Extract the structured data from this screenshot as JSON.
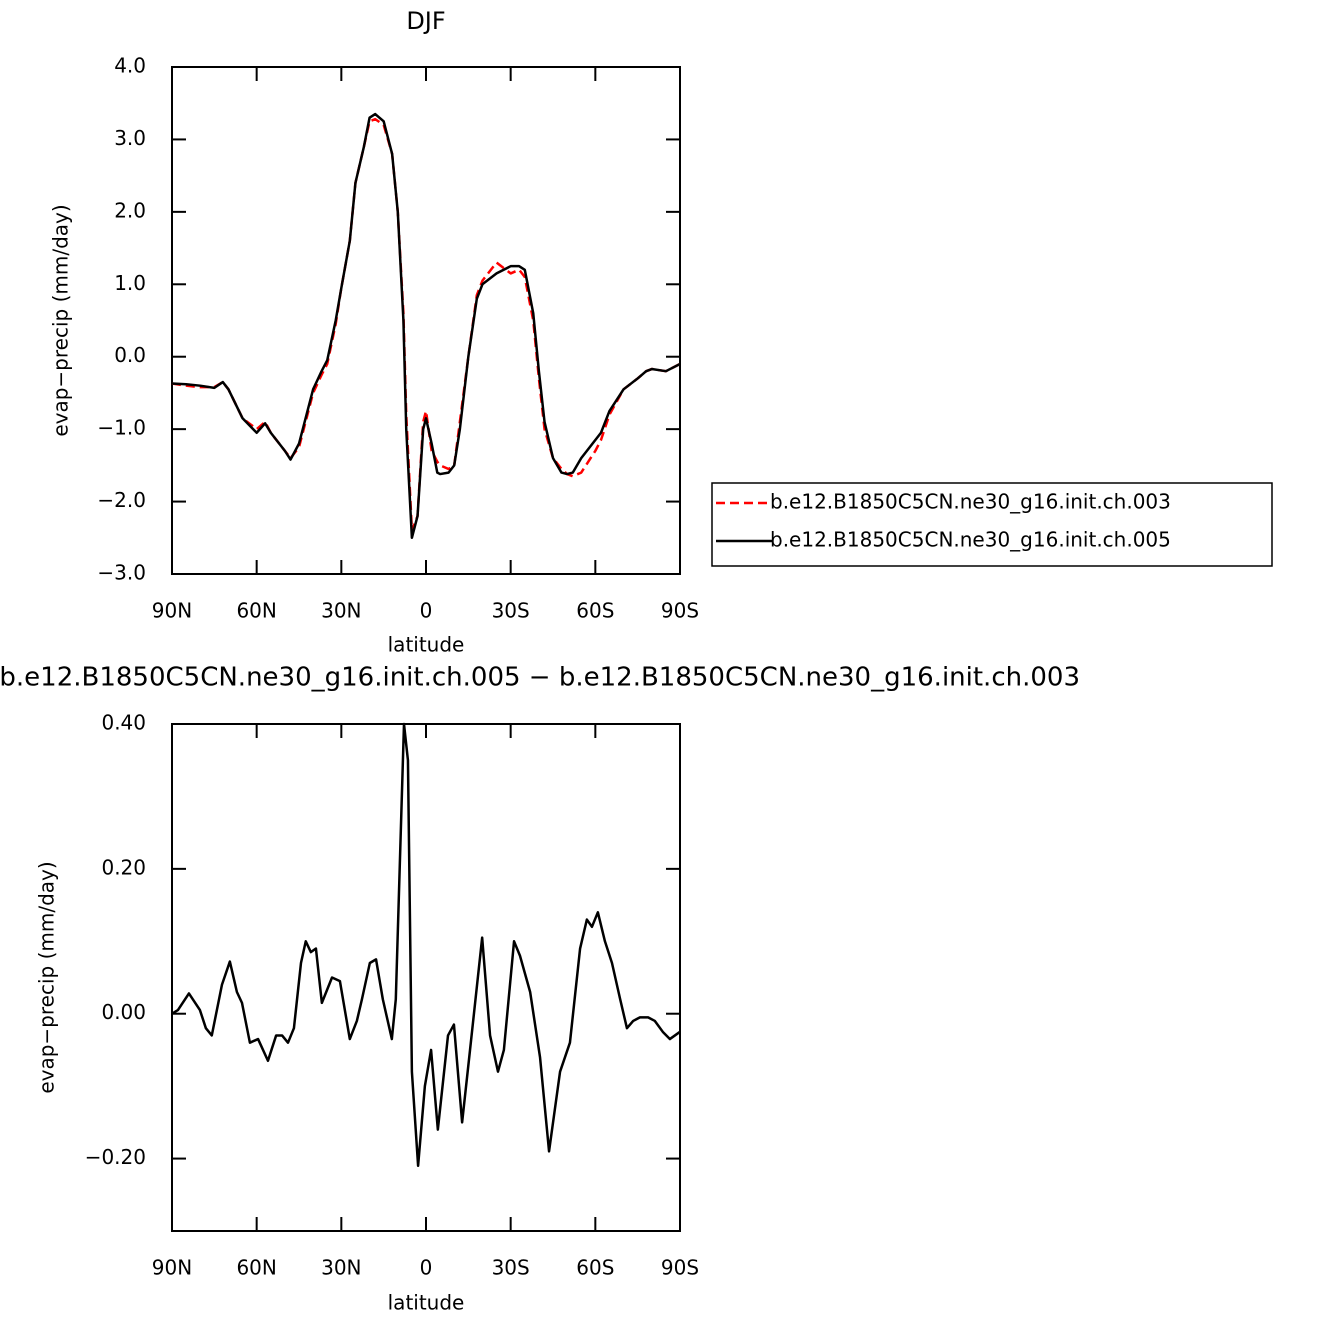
{
  "chart_data": [
    {
      "type": "line",
      "title": "DJF",
      "xlabel": "latitude",
      "ylabel": "evap−precip (mm/day)",
      "x": [
        90,
        85,
        80,
        75,
        72,
        70,
        65,
        60,
        57,
        55,
        50,
        48,
        45,
        40,
        37,
        35,
        32,
        30,
        27,
        25,
        22,
        20,
        18,
        15,
        12,
        10,
        8,
        7,
        5,
        3,
        1,
        0,
        -2,
        -4,
        -5,
        -8,
        -10,
        -12,
        -15,
        -18,
        -20,
        -25,
        -30,
        -33,
        -35,
        -38,
        -40,
        -42,
        -45,
        -48,
        -50,
        -52,
        -55,
        -60,
        -62,
        -65,
        -70,
        -75,
        -78,
        -80,
        -85,
        -90
      ],
      "series": [
        {
          "name": "b.e12.B1850C5CN.ne30_g16.init.ch.003",
          "color": "#ff0000",
          "line_style": "dashed",
          "values": [
            -0.37,
            -0.4,
            -0.42,
            -0.42,
            -0.35,
            -0.45,
            -0.85,
            -1.0,
            -0.9,
            -1.05,
            -1.3,
            -1.4,
            -1.25,
            -0.5,
            -0.25,
            -0.1,
            0.45,
            0.95,
            1.6,
            2.4,
            2.9,
            3.25,
            3.28,
            3.2,
            2.8,
            2.0,
            0.6,
            -0.8,
            -2.4,
            -2.2,
            -0.9,
            -0.75,
            -1.3,
            -1.45,
            -1.5,
            -1.55,
            -1.5,
            -0.9,
            0.0,
            0.85,
            1.05,
            1.3,
            1.15,
            1.2,
            1.1,
            0.5,
            -0.3,
            -1.0,
            -1.4,
            -1.55,
            -1.62,
            -1.65,
            -1.6,
            -1.3,
            -1.15,
            -0.8,
            -0.45,
            -0.3,
            -0.2,
            -0.17,
            -0.2,
            -0.1
          ]
        },
        {
          "name": "b.e12.B1850C5CN.ne30_g16.init.ch.005",
          "color": "#000000",
          "line_style": "solid",
          "values": [
            -0.37,
            -0.38,
            -0.4,
            -0.43,
            -0.35,
            -0.45,
            -0.85,
            -1.05,
            -0.92,
            -1.05,
            -1.3,
            -1.42,
            -1.2,
            -0.45,
            -0.2,
            -0.05,
            0.5,
            0.95,
            1.6,
            2.4,
            2.9,
            3.3,
            3.35,
            3.25,
            2.8,
            2.0,
            0.5,
            -1.0,
            -2.5,
            -2.2,
            -1.0,
            -0.85,
            -1.2,
            -1.6,
            -1.62,
            -1.6,
            -1.5,
            -1.0,
            0.0,
            0.8,
            1.0,
            1.15,
            1.25,
            1.25,
            1.2,
            0.6,
            -0.2,
            -0.9,
            -1.4,
            -1.6,
            -1.62,
            -1.6,
            -1.4,
            -1.15,
            -1.05,
            -0.75,
            -0.45,
            -0.3,
            -0.2,
            -0.17,
            -0.2,
            -0.1
          ]
        }
      ],
      "xlim": [
        90,
        -90
      ],
      "xticks": [
        {
          "value": 90,
          "label": "90N"
        },
        {
          "value": 60,
          "label": "60N"
        },
        {
          "value": 30,
          "label": "30N"
        },
        0,
        {
          "value": -30,
          "label": "30S"
        },
        {
          "value": -60,
          "label": "60S"
        },
        {
          "value": -90,
          "label": "90S"
        }
      ],
      "ylim": [
        -3,
        4
      ],
      "yticks": [
        {
          "value": 4,
          "label": "4.0"
        },
        {
          "value": 3,
          "label": "3.0"
        },
        {
          "value": 2,
          "label": "2.0"
        },
        {
          "value": 1,
          "label": "1.0"
        },
        {
          "value": 0,
          "label": "0.0"
        },
        {
          "value": -1,
          "label": "−1.0"
        },
        {
          "value": -2,
          "label": "−2.0"
        },
        {
          "value": -3,
          "label": "−3.0"
        }
      ],
      "legend": "right",
      "grid": false
    },
    {
      "type": "line",
      "title": "b.e12.B1850C5CN.ne30_g16.init.ch.005 − b.e12.B1850C5CN.ne30_g16.init.ch.003",
      "xlabel": "latitude",
      "ylabel": "evap−precip (mm/day)",
      "x": [
        90,
        87.9,
        84,
        80.1,
        78,
        75.9,
        72.3,
        69.5,
        67,
        65.2,
        62.4,
        59.5,
        56,
        53.1,
        51,
        48.9,
        46.8,
        44.3,
        42.6,
        40.8,
        39,
        36.9,
        33.3,
        30.5,
        27,
        24.5,
        22.7,
        19.9,
        17.7,
        15.3,
        12.1,
        10.7,
        7.8,
        6.4,
        5,
        2.8,
        0.4,
        -1.8,
        -4.2,
        -7.8,
        -9.9,
        -12.8,
        -15.6,
        -19.9,
        -22.7,
        -25.5,
        -27.6,
        -31.2,
        -33.3,
        -36.9,
        -40.4,
        -43.6,
        -47.5,
        -51,
        -54.6,
        -57,
        -58.8,
        -60.9,
        -63.4,
        -65.9,
        -68.8,
        -71.2,
        -73.4,
        -75.8,
        -78.7,
        -81.1,
        -83.9,
        -86.4,
        -90
      ],
      "series": [
        {
          "color": "#000000",
          "line_style": "solid",
          "values": [
            0.0,
            0.005,
            0.028,
            0.005,
            -0.02,
            -0.03,
            0.04,
            0.072,
            0.03,
            0.015,
            -0.04,
            -0.035,
            -0.065,
            -0.03,
            -0.03,
            -0.04,
            -0.02,
            0.07,
            0.1,
            0.085,
            0.09,
            0.015,
            0.05,
            0.045,
            -0.035,
            -0.01,
            0.02,
            0.07,
            0.075,
            0.02,
            -0.035,
            0.02,
            0.4,
            0.35,
            -0.08,
            -0.21,
            -0.1,
            -0.05,
            -0.16,
            -0.03,
            -0.015,
            -0.15,
            -0.05,
            0.105,
            -0.03,
            -0.08,
            -0.05,
            0.1,
            0.08,
            0.03,
            -0.06,
            -0.19,
            -0.08,
            -0.04,
            0.09,
            0.13,
            0.12,
            0.14,
            0.1,
            0.07,
            0.02,
            -0.02,
            -0.01,
            -0.005,
            -0.005,
            -0.01,
            -0.025,
            -0.035,
            -0.025
          ]
        }
      ],
      "xlim": [
        90,
        -90
      ],
      "xticks": [
        {
          "value": 90,
          "label": "90N"
        },
        {
          "value": 60,
          "label": "60N"
        },
        {
          "value": 30,
          "label": "30N"
        },
        0,
        {
          "value": -30,
          "label": "30S"
        },
        {
          "value": -60,
          "label": "60S"
        },
        {
          "value": -90,
          "label": "90S"
        }
      ],
      "ylim": [
        -0.3,
        0.4
      ],
      "yticks": [
        {
          "value": 0.4,
          "label": "0.40"
        },
        {
          "value": 0.2,
          "label": "0.20"
        },
        {
          "value": 0,
          "label": "0.00"
        },
        {
          "value": -0.2,
          "label": "−0.20"
        }
      ],
      "grid": false
    }
  ]
}
